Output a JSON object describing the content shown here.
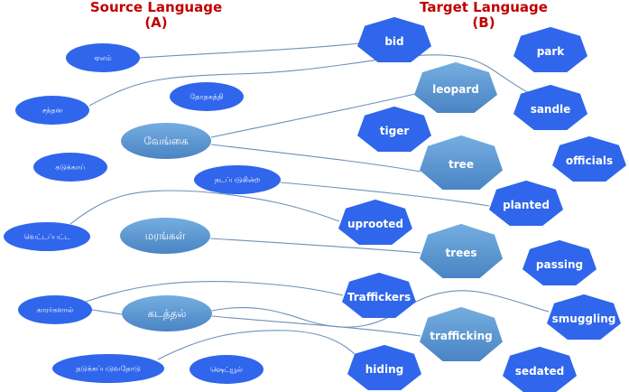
{
  "headings": {
    "source": {
      "title": "Source Language",
      "sub": "(A)"
    },
    "target": {
      "title": "Target Language",
      "sub": "(B)"
    }
  },
  "colors": {
    "heading": "#c00000",
    "node": "#2f66eb",
    "highlight_top": "#6fa8dc",
    "highlight_bottom": "#4a86c8",
    "edge": "#6f90b8"
  },
  "source_nodes": [
    {
      "id": "elam",
      "label": "ஏலம்",
      "highlight": false
    },
    {
      "id": "santhana",
      "label": "சந்தன",
      "highlight": false
    },
    {
      "id": "thothagathi",
      "label": "தோதகத்தி",
      "highlight": false
    },
    {
      "id": "vengai",
      "label": "வேங்கை",
      "highlight": true
    },
    {
      "id": "kadukkai",
      "label": "கடுக்காய்",
      "highlight": false
    },
    {
      "id": "nadappadugindra",
      "label": "நடப்படுகின்ற",
      "highlight": false
    },
    {
      "id": "vettappatta",
      "label": "வெட்டப்பட்ட",
      "highlight": false
    },
    {
      "id": "marangal",
      "label": "மரங்கள்",
      "highlight": true
    },
    {
      "id": "kaararkalaal",
      "label": "காரர்களால்",
      "highlight": false
    },
    {
      "id": "kadathal",
      "label": "கடத்தல்",
      "highlight": true
    },
    {
      "id": "thadukkappaduvathodu",
      "label": "தடுக்கப்படுவதோடு",
      "highlight": false
    },
    {
      "id": "schedule",
      "label": "ஷெட்யூல்",
      "highlight": false
    }
  ],
  "target_nodes": [
    {
      "id": "bid",
      "label": "bid",
      "highlight": false
    },
    {
      "id": "park",
      "label": "park",
      "highlight": false
    },
    {
      "id": "leopard",
      "label": "leopard",
      "highlight": true
    },
    {
      "id": "sandle",
      "label": "sandle",
      "highlight": false
    },
    {
      "id": "tiger",
      "label": "tiger",
      "highlight": false
    },
    {
      "id": "tree",
      "label": "tree",
      "highlight": true
    },
    {
      "id": "officials",
      "label": "officials",
      "highlight": false
    },
    {
      "id": "planted",
      "label": "planted",
      "highlight": false
    },
    {
      "id": "uprooted",
      "label": "uprooted",
      "highlight": false
    },
    {
      "id": "trees",
      "label": "trees",
      "highlight": true
    },
    {
      "id": "passing",
      "label": "passing",
      "highlight": false
    },
    {
      "id": "traffickers",
      "label": "Traffickers",
      "highlight": false
    },
    {
      "id": "smuggling",
      "label": "smuggling",
      "highlight": false
    },
    {
      "id": "trafficking",
      "label": "trafficking",
      "highlight": true
    },
    {
      "id": "hiding",
      "label": "hiding",
      "highlight": false
    },
    {
      "id": "sedated",
      "label": "sedated",
      "highlight": false
    }
  ],
  "edges": [
    {
      "from": "elam",
      "to": "bid"
    },
    {
      "from": "santhana",
      "to": "sandle"
    },
    {
      "from": "vengai",
      "to": "leopard"
    },
    {
      "from": "vengai",
      "to": "tree"
    },
    {
      "from": "nadappadugindra",
      "to": "planted"
    },
    {
      "from": "vettappatta",
      "to": "uprooted"
    },
    {
      "from": "marangal",
      "to": "trees"
    },
    {
      "from": "kaararkalaal",
      "to": "traffickers"
    },
    {
      "from": "kaararkalaal",
      "to": "kadathal"
    },
    {
      "from": "kadathal",
      "to": "smuggling"
    },
    {
      "from": "kadathal",
      "to": "trafficking"
    },
    {
      "from": "thadukkappaduvathodu",
      "to": "hiding"
    }
  ]
}
